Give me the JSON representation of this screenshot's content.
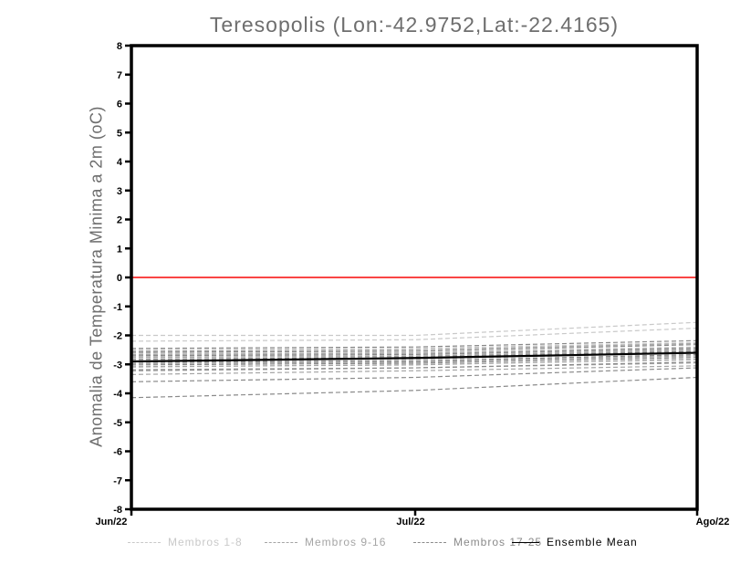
{
  "chart_data": {
    "type": "line",
    "title": "Teresopolis (Lon:-42.9752,Lat:-22.4165)",
    "ylabel": "Anomalia de Temperatura Minima a 2m (oC)",
    "xlabel": "",
    "x_tick_labels": [
      "Jun/22",
      "Jul/22",
      "Ago/22"
    ],
    "y_tick_labels": [
      "8",
      "7",
      "6",
      "5",
      "4",
      "3",
      "2",
      "1",
      "0",
      "-1",
      "-2",
      "-3",
      "-4",
      "-5",
      "-6",
      "-7",
      "-8"
    ],
    "ylim": [
      -8,
      8
    ],
    "grid": false,
    "legend_position": "bottom",
    "zero_line": {
      "value": 0,
      "color": "#fa4544"
    },
    "x_points": [
      "Jun/22",
      "Jul/22",
      "Ago/22"
    ],
    "groups": [
      {
        "label": "Membros 1-8",
        "color": "#c9c9c9",
        "style": "dashed",
        "members": [
          [
            -2.0,
            -2.0,
            -1.55
          ],
          [
            -2.2,
            -2.15,
            -1.75
          ],
          [
            -2.5,
            -2.45,
            -2.25
          ],
          [
            -2.62,
            -2.6,
            -2.4
          ],
          [
            -2.72,
            -2.7,
            -2.5
          ],
          [
            -2.85,
            -2.8,
            -2.62
          ],
          [
            -2.95,
            -2.9,
            -2.72
          ],
          [
            -3.1,
            -3.0,
            -2.85
          ]
        ]
      },
      {
        "label": "Membros 9-16",
        "color": "#a5a5a5",
        "style": "dashed",
        "members": [
          [
            -2.55,
            -2.5,
            -2.28
          ],
          [
            -2.66,
            -2.62,
            -2.42
          ],
          [
            -2.76,
            -2.72,
            -2.52
          ],
          [
            -2.88,
            -2.82,
            -2.6
          ],
          [
            -2.98,
            -2.92,
            -2.7
          ],
          [
            -3.08,
            -3.02,
            -2.82
          ],
          [
            -3.18,
            -3.12,
            -2.95
          ],
          [
            -3.35,
            -3.22,
            -3.05
          ]
        ]
      },
      {
        "label": "Membros 17-25",
        "color": "#8a8a8a",
        "style": "dashed",
        "members": [
          [
            -2.45,
            -2.4,
            -2.18
          ],
          [
            -2.58,
            -2.55,
            -2.32
          ],
          [
            -2.7,
            -2.66,
            -2.46
          ],
          [
            -2.82,
            -2.76,
            -2.55
          ],
          [
            -2.92,
            -2.88,
            -2.66
          ],
          [
            -3.02,
            -2.96,
            -2.76
          ],
          [
            -3.22,
            -3.12,
            -2.92
          ],
          [
            -3.6,
            -3.45,
            -3.12
          ],
          [
            -4.15,
            -3.9,
            -3.45
          ]
        ]
      }
    ],
    "ensemble_mean": {
      "label": "Ensemble Mean",
      "color": "#000000",
      "style": "solid",
      "values": [
        -2.9,
        -2.78,
        -2.6
      ]
    }
  }
}
